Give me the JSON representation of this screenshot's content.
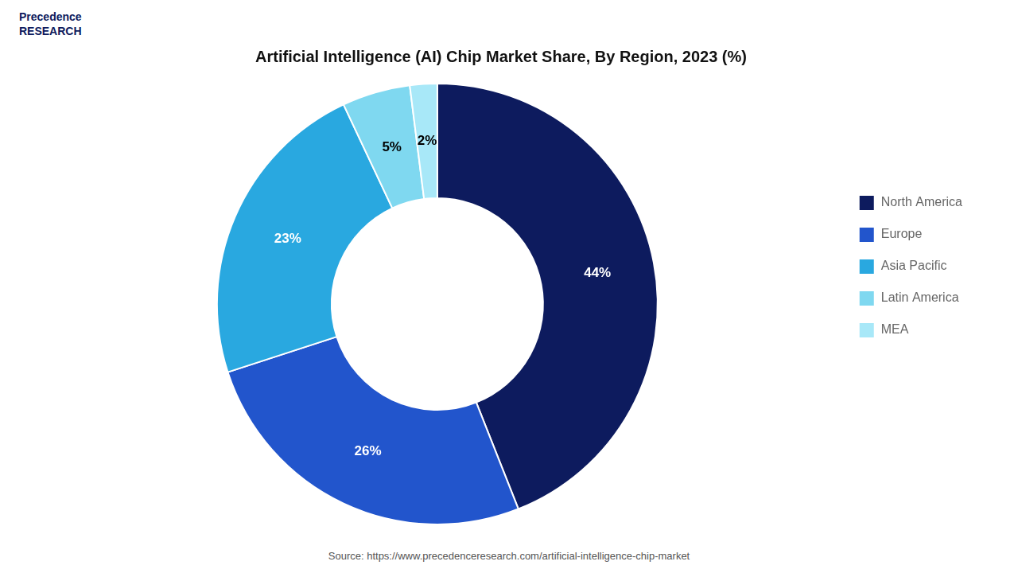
{
  "chart_data": {
    "type": "doughnut",
    "title": "Artificial Intelligence (AI) Chip Market Share, By Region, 2023 (%)",
    "categories": [
      "North America",
      "Europe",
      "Asia Pacific",
      "Latin America",
      "MEA"
    ],
    "values": [
      44,
      26,
      23,
      5,
      2
    ],
    "value_labels": [
      "44%",
      "26%",
      "23%",
      "5%",
      "2%"
    ],
    "colors": [
      "#0d1b5e",
      "#2255cc",
      "#29a8e0",
      "#7fd8f0",
      "#a8e8f8"
    ],
    "data_labels": true,
    "legend": "right",
    "annotations": [
      "Precedence\nRESEARCH",
      "Source: https://www.precedenceresearch.com/artificial-intelligence-chip-market"
    ]
  }
}
